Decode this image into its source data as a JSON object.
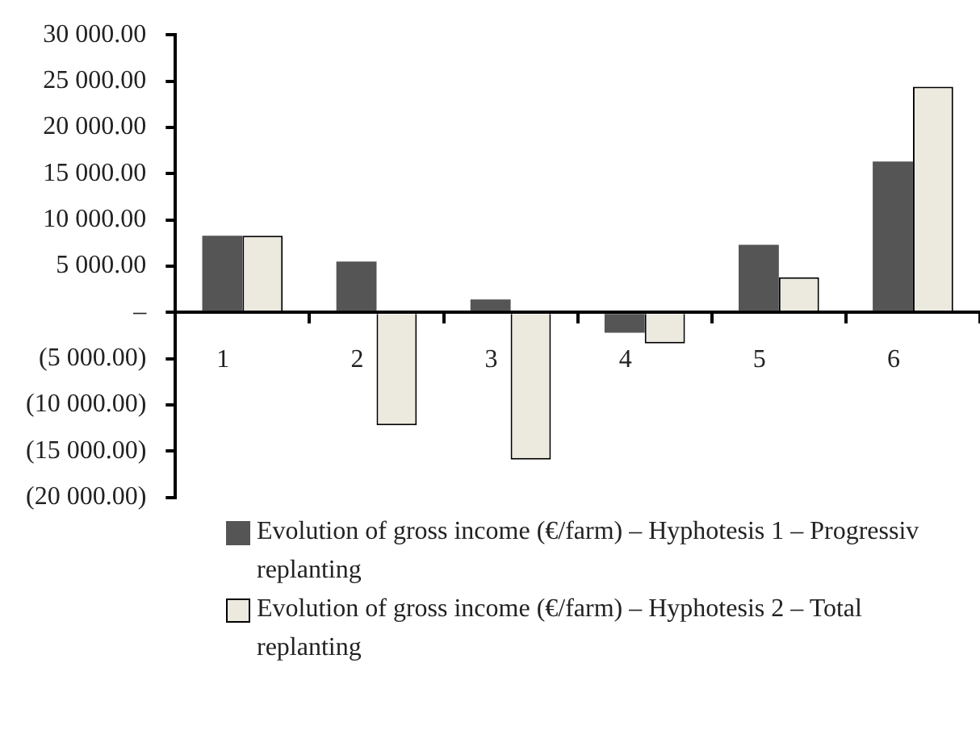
{
  "chart_data": {
    "type": "bar",
    "categories": [
      "1",
      "2",
      "3",
      "4",
      "5",
      "6"
    ],
    "series": [
      {
        "name": "Evolution of gross income (€/farm)  – Hyphotesis 1 – Progressiv replanting",
        "color": "#555555",
        "values": [
          8300,
          5500,
          1400,
          -2200,
          7300,
          16300
        ]
      },
      {
        "name": "Evolution of gross income (€/farm) – Hyphotesis 2 – Total replanting",
        "color": "#ece9df",
        "values": [
          8300,
          -12200,
          -15900,
          -3350,
          3800,
          24400
        ]
      }
    ],
    "ylim": [
      -20000,
      30000
    ],
    "yticks": [
      {
        "value": 30000,
        "label": "30 000.00"
      },
      {
        "value": 25000,
        "label": "25 000.00"
      },
      {
        "value": 20000,
        "label": "20 000.00"
      },
      {
        "value": 15000,
        "label": "15 000.00"
      },
      {
        "value": 10000,
        "label": "10 000.00"
      },
      {
        "value": 5000,
        "label": "5 000.00"
      },
      {
        "value": 0,
        "label": "–"
      },
      {
        "value": -5000,
        "label": "(5 000.00)"
      },
      {
        "value": -10000,
        "label": "(10 000.00)"
      },
      {
        "value": -15000,
        "label": "(15 000.00)"
      },
      {
        "value": -20000,
        "label": "(20 000.00)"
      }
    ],
    "grid": false,
    "legend": "bottom"
  }
}
